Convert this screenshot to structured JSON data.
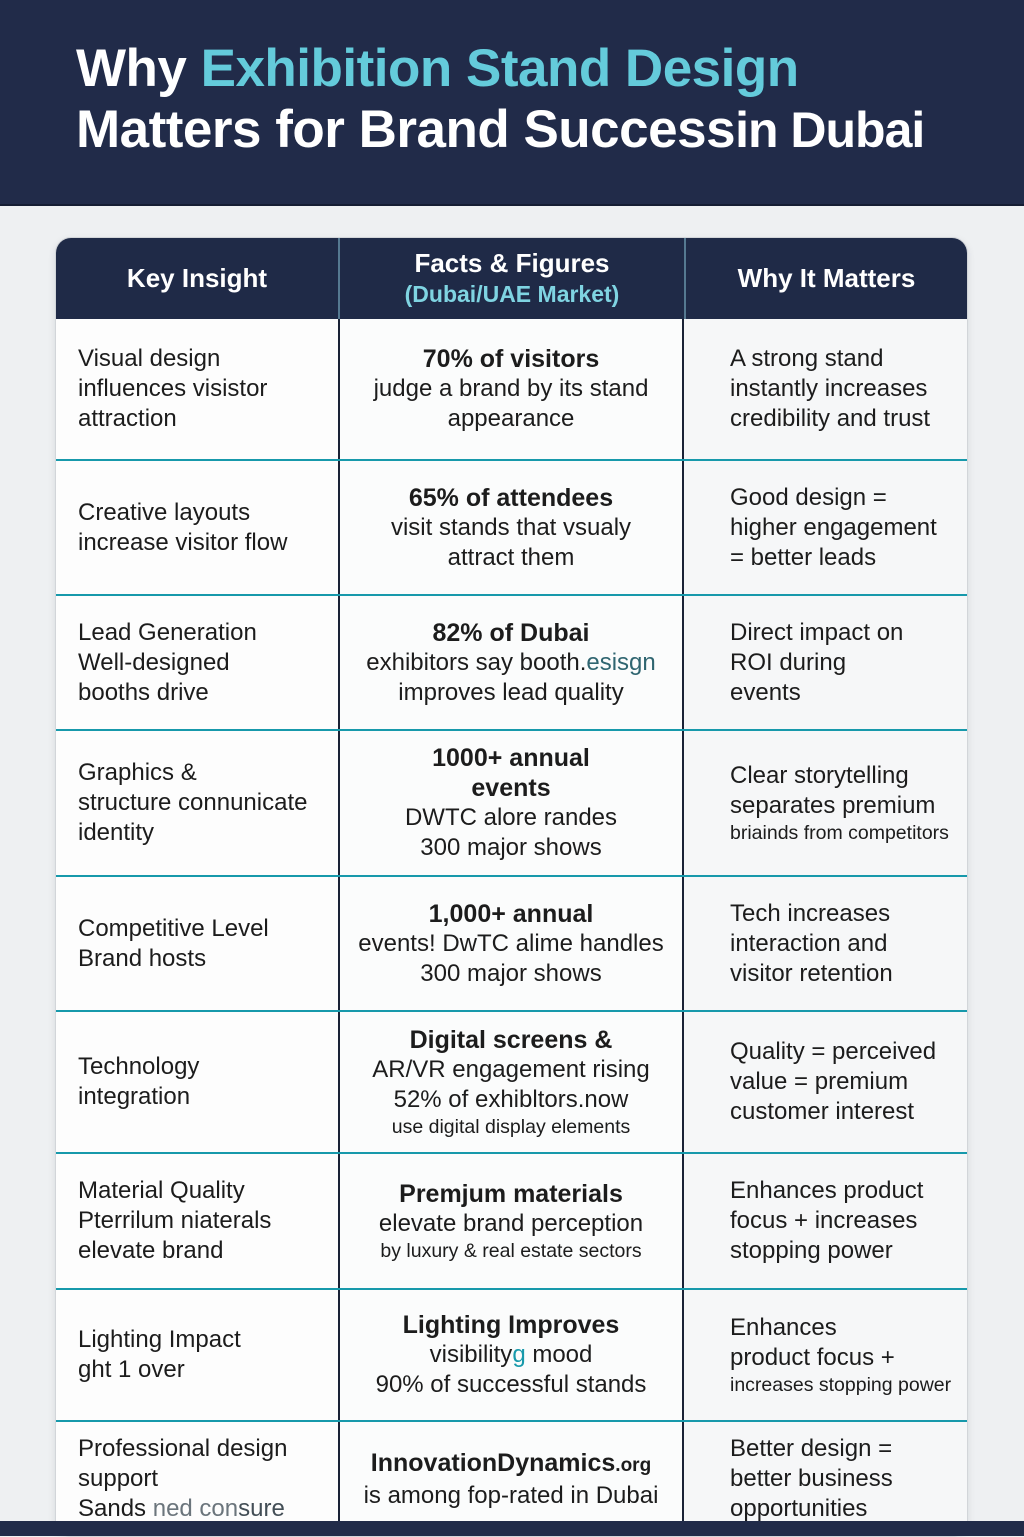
{
  "colors": {
    "navy": "#212b49",
    "accent_teal": "#64cbdb",
    "row_divider_teal": "#1799ab",
    "header_sub_teal": "#7fd4e2",
    "body_text": "#1c1c1c"
  },
  "title": {
    "line1_white": "Why ",
    "line1_teal": "Exhibition Stand Design",
    "line2_white": "Matters for Brand Success",
    "line2_suffix": "in Dubai"
  },
  "table": {
    "headers": [
      {
        "label": "Key Insight",
        "sub": ""
      },
      {
        "label": "Facts & Figures",
        "sub": "(Dubai/UAE Market)"
      },
      {
        "label": "Why It Matters",
        "sub": ""
      }
    ],
    "rows": [
      {
        "insight": [
          "Visual design",
          "influences visistor",
          "attraction"
        ],
        "facts": [
          {
            "t": "70% of visitors",
            "b": true
          },
          "judge a brand by its stand",
          "appearance"
        ],
        "why": [
          "A strong stand",
          "instantly increases",
          "credibility and trust"
        ]
      },
      {
        "insight": [
          "Creative layouts",
          "increase visitor  flow"
        ],
        "facts": [
          {
            "t": "65% of attendees",
            "b": true
          },
          "visit stands that vsualy",
          "attract them"
        ],
        "why": [
          "Good design =",
          "higher engagement",
          "= better leads"
        ]
      },
      {
        "insight": [
          "Lead Generation",
          "Well-designed",
          "booths drive"
        ],
        "facts": [
          {
            "t": "82% of Dubai",
            "b": true
          },
          {
            "segs": [
              {
                "t": "exhibitors say booth."
              },
              {
                "t": "esisgn",
                "c": "#2f6570"
              }
            ]
          },
          "improves lead quality"
        ],
        "why": [
          "Direct impact on",
          "ROI during",
          "events"
        ]
      },
      {
        "insight": [
          "Graphics &",
          "structure connunicate",
          "identity"
        ],
        "facts": [
          {
            "t": "1000+ annual",
            "b": true
          },
          {
            "t": "events",
            "b": true
          },
          "DWTC alore randes",
          "300 major shows"
        ],
        "why": [
          "Clear storytelling",
          "separates premium",
          {
            "t": "briainds from competitors",
            "s": true
          }
        ]
      },
      {
        "insight": [
          "Competitive Level",
          "Brand hosts"
        ],
        "facts": [
          {
            "t": "1,000+ annual",
            "b": true
          },
          "events! DwTC alime handles",
          "300 major shows"
        ],
        "why": [
          "Tech increases",
          "interaction and",
          "visitor retention"
        ]
      },
      {
        "insight": [
          "Technology",
          "integration"
        ],
        "facts": [
          {
            "t": "Digital screens &",
            "b": true
          },
          "AR/VR engagement rising",
          "52% of exhibltors.now",
          {
            "t": "use digital display elements",
            "s": true
          }
        ],
        "why": [
          "Quality = perceived",
          "value = premium",
          "customer interest"
        ]
      },
      {
        "insight": [
          "Material Quality",
          "Pterrilum niaterals",
          "elevate brand"
        ],
        "facts": [
          {
            "t": "Premjum materials",
            "b": true
          },
          "elevate brand perception",
          {
            "t": "by luxury & real estate sectors",
            "s": true
          }
        ],
        "why": [
          "Enhances product",
          "focus + increases",
          "stopping power"
        ]
      },
      {
        "insight": [
          "Lighting Impact",
          "ght 1 over"
        ],
        "facts": [
          {
            "t": "Lighting Improves",
            "b": true
          },
          {
            "segs": [
              {
                "t": "visibility"
              },
              {
                "t": "g",
                "c": "#1799ab"
              },
              {
                "t": " mood"
              }
            ]
          },
          "90% of successful stands"
        ],
        "why": [
          "Enhances",
          "product focus +",
          {
            "t": "increases stopping power",
            "s": true
          }
        ]
      },
      {
        "insight": [
          "Professional design",
          "support",
          {
            "segs": [
              {
                "t": "Sands "
              },
              {
                "t": "ned con",
                "c": "#6b757c"
              },
              {
                "t": "sure",
                "c": "#434e56"
              }
            ]
          }
        ],
        "facts": [
          {
            "b": true,
            "segs": [
              {
                "t": "InnovationDynamics"
              },
              {
                "t": ".org",
                "sm": true
              }
            ]
          },
          "is among fop-rated in Dubai"
        ],
        "why": [
          "Better design =",
          "better business",
          "opportunities"
        ]
      }
    ]
  }
}
